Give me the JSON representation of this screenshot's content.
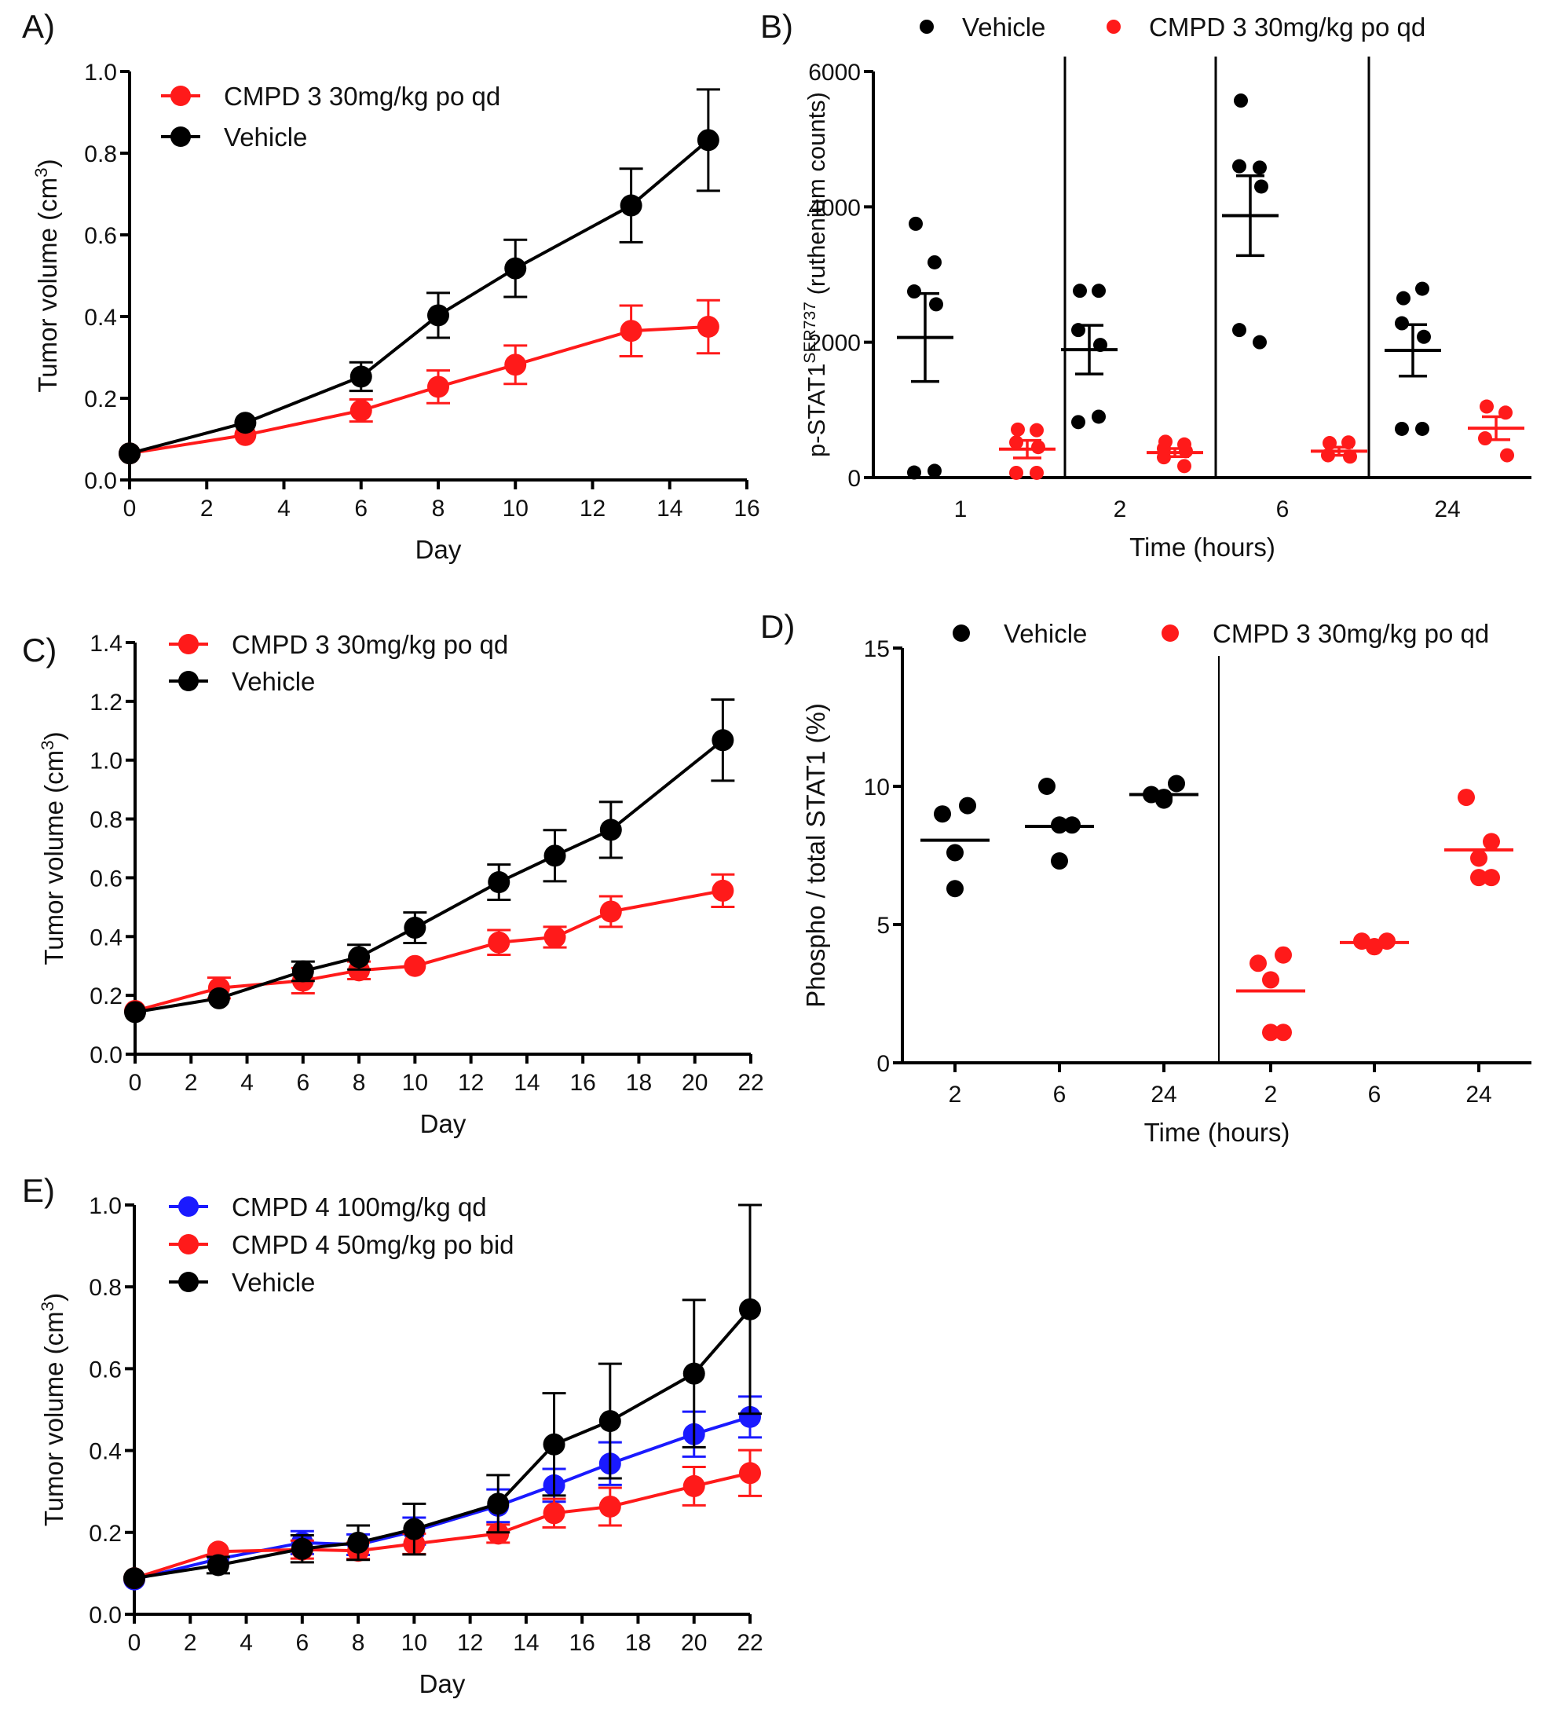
{
  "figure": {
    "panels": [
      "A)",
      "B)",
      "C)",
      "D)",
      "E)"
    ]
  },
  "colors": {
    "vehicle": "#000000",
    "cmpd_red": "#ff1a1a",
    "cmpd_blue": "#1a1aff"
  },
  "chart_data": [
    {
      "id": "A",
      "panel_label": "A)",
      "type": "line",
      "title": "",
      "xlabel": "Day",
      "ylabel": "Tumor volume (cm³)",
      "ylabel_main": "Tumor volume (cm",
      "ylabel_sup": "3",
      "ylabel_end": ")",
      "xlim": [
        0,
        16
      ],
      "ylim": [
        0,
        1.0
      ],
      "xticks": [
        0,
        2,
        4,
        6,
        8,
        10,
        12,
        14,
        16
      ],
      "yticks": [
        0.0,
        0.2,
        0.4,
        0.6,
        0.8,
        1.0
      ],
      "ytick_labels": [
        "0.0",
        "0.2",
        "0.4",
        "0.6",
        "0.8",
        "1.0"
      ],
      "legend_position": "top-left",
      "series": [
        {
          "name": "CMPD 3 30mg/kg po qd",
          "color": "#ff1a1a",
          "x": [
            0,
            3,
            6,
            8,
            10,
            13,
            15
          ],
          "y": [
            0.065,
            0.11,
            0.17,
            0.228,
            0.282,
            0.365,
            0.375
          ],
          "err": [
            0,
            0,
            0.027,
            0.04,
            0.047,
            0.062,
            0.065
          ]
        },
        {
          "name": "Vehicle",
          "color": "#000000",
          "x": [
            0,
            3,
            6,
            8,
            10,
            13,
            15
          ],
          "y": [
            0.065,
            0.14,
            0.253,
            0.403,
            0.518,
            0.672,
            0.832
          ],
          "err": [
            0,
            0,
            0.035,
            0.055,
            0.07,
            0.09,
            0.124
          ]
        }
      ]
    },
    {
      "id": "B",
      "panel_label": "B)",
      "type": "scatter",
      "title": "",
      "xlabel": "Time (hours)",
      "ylabel_main": "p-STAT1",
      "ylabel_sup": "SER737",
      "ylabel_end": " (ruthenium counts)",
      "ylim": [
        0,
        6000
      ],
      "yticks": [
        0,
        2000,
        4000,
        6000
      ],
      "ytick_labels": [
        "0",
        "2000",
        "4000",
        "6000"
      ],
      "categories": [
        "1",
        "2",
        "6",
        "24"
      ],
      "legend_position": "top",
      "series": [
        {
          "name": "Vehicle",
          "color": "#000000",
          "points": [
            [
              3750,
              3180,
              2750,
              2560,
              75,
              100
            ],
            [
              2760,
              2760,
              2180,
              1960,
              820,
              900
            ],
            [
              5570,
              4580,
              4600,
              4300,
              2180,
              2000
            ],
            [
              2650,
              2790,
              2280,
              2080,
              720,
              720
            ]
          ],
          "mean": [
            2070,
            1890,
            3870,
            1880
          ],
          "sem": [
            650,
            360,
            590,
            380
          ]
        },
        {
          "name": "CMPD 3 30mg/kg po qd",
          "color": "#ff1a1a",
          "points": [
            [
              710,
              700,
              520,
              450,
              70,
              70
            ],
            [
              530,
              490,
              430,
              390,
              300,
              170
            ],
            [
              510,
              520,
              330,
              310
            ],
            [
              1050,
              960,
              580,
              330
            ]
          ],
          "mean": [
            420,
            370,
            390,
            730
          ],
          "sem": [
            130,
            60,
            60,
            170
          ]
        }
      ]
    },
    {
      "id": "C",
      "panel_label": "C)",
      "type": "line",
      "title": "",
      "xlabel": "Day",
      "ylabel_main": "Tumor volume (cm",
      "ylabel_sup": "3",
      "ylabel_end": ")",
      "xlim": [
        0,
        22
      ],
      "ylim": [
        0,
        1.4
      ],
      "xticks": [
        0,
        2,
        4,
        6,
        8,
        10,
        12,
        14,
        16,
        18,
        20,
        22
      ],
      "yticks": [
        0.0,
        0.2,
        0.4,
        0.6,
        0.8,
        1.0,
        1.2,
        1.4
      ],
      "ytick_labels": [
        "0.0",
        "0.2",
        "0.4",
        "0.6",
        "0.8",
        "1.0",
        "1.2",
        "1.4"
      ],
      "legend_position": "top-left",
      "series": [
        {
          "name": "CMPD 3 30mg/kg po qd",
          "color": "#ff1a1a",
          "x": [
            0,
            3,
            6,
            8,
            10,
            13,
            15,
            17,
            21
          ],
          "y": [
            0.147,
            0.225,
            0.25,
            0.285,
            0.3,
            0.38,
            0.398,
            0.485,
            0.556
          ],
          "err": [
            0,
            0.035,
            0.043,
            0.03,
            0,
            0.042,
            0.035,
            0.052,
            0.055
          ]
        },
        {
          "name": "Vehicle",
          "color": "#000000",
          "x": [
            0,
            3,
            6,
            8,
            10,
            13,
            15,
            17,
            21
          ],
          "y": [
            0.143,
            0.19,
            0.282,
            0.33,
            0.43,
            0.585,
            0.675,
            0.763,
            1.068
          ],
          "err": [
            0,
            0,
            0.033,
            0.042,
            0.052,
            0.06,
            0.087,
            0.095,
            0.138
          ]
        }
      ]
    },
    {
      "id": "D",
      "panel_label": "D)",
      "type": "scatter",
      "title": "",
      "xlabel": "Time (hours)",
      "ylabel_main": "Phospho / total STAT1 (%)",
      "ylabel_sup": "",
      "ylabel_end": "",
      "ylim": [
        0,
        15
      ],
      "yticks": [
        0,
        5,
        10,
        15
      ],
      "ytick_labels": [
        "0",
        "5",
        "10",
        "15"
      ],
      "categories": [
        "2",
        "6",
        "24",
        "2",
        "6",
        "24"
      ],
      "legend_position": "top",
      "series": [
        {
          "name": "Vehicle",
          "color": "#000000",
          "groups": [
            0,
            1,
            2
          ],
          "points": [
            [
              9.0,
              9.3,
              7.6,
              6.3
            ],
            [
              10.0,
              8.6,
              8.6,
              7.3
            ],
            [
              9.7,
              10.1,
              9.5,
              9.6
            ]
          ],
          "mean": [
            8.05,
            8.55,
            9.7
          ]
        },
        {
          "name": "CMPD 3 30mg/kg po qd",
          "color": "#ff1a1a",
          "groups": [
            3,
            4,
            5
          ],
          "points": [
            [
              3.6,
              3.9,
              3.0,
              1.1,
              1.1
            ],
            [
              4.4,
              4.4,
              4.2,
              4.2
            ],
            [
              9.6,
              8.0,
              7.4,
              6.7,
              6.7
            ]
          ],
          "mean": [
            2.6,
            4.35,
            7.7
          ]
        }
      ]
    },
    {
      "id": "E",
      "panel_label": "E)",
      "type": "line",
      "title": "",
      "xlabel": "Day",
      "ylabel_main": "Tumor volume (cm",
      "ylabel_sup": "3",
      "ylabel_end": ")",
      "xlim": [
        0,
        22
      ],
      "ylim": [
        0,
        1.0
      ],
      "xticks": [
        0,
        2,
        4,
        6,
        8,
        10,
        12,
        14,
        16,
        18,
        20,
        22
      ],
      "yticks": [
        0.0,
        0.2,
        0.4,
        0.6,
        0.8,
        1.0
      ],
      "ytick_labels": [
        "0.0",
        "0.2",
        "0.4",
        "0.6",
        "0.8",
        "1.0"
      ],
      "legend_position": "top-left",
      "series": [
        {
          "name": "CMPD 4 100mg/kg qd",
          "color": "#1a1aff",
          "x": [
            0,
            3,
            6,
            8,
            10,
            13,
            15,
            17,
            20,
            22
          ],
          "y": [
            0.085,
            0.135,
            0.175,
            0.17,
            0.203,
            0.265,
            0.315,
            0.368,
            0.44,
            0.482
          ],
          "err": [
            0,
            0,
            0.028,
            0.025,
            0.033,
            0.04,
            0.04,
            0.052,
            0.055,
            0.05
          ]
        },
        {
          "name": "CMPD 4  50mg/kg po bid",
          "color": "#ff1a1a",
          "x": [
            0,
            3,
            6,
            8,
            10,
            13,
            15,
            17,
            20,
            22
          ],
          "y": [
            0.088,
            0.153,
            0.158,
            0.155,
            0.172,
            0.197,
            0.247,
            0.263,
            0.313,
            0.345
          ],
          "err": [
            0,
            0,
            0.022,
            0.02,
            0.025,
            0.022,
            0.035,
            0.046,
            0.047,
            0.056
          ]
        },
        {
          "name": "Vehicle",
          "color": "#000000",
          "x": [
            0,
            3,
            6,
            8,
            10,
            13,
            15,
            17,
            20,
            22
          ],
          "y": [
            0.088,
            0.12,
            0.16,
            0.175,
            0.208,
            0.27,
            0.415,
            0.472,
            0.588,
            0.745
          ],
          "err": [
            0,
            0.02,
            0.033,
            0.042,
            0.062,
            0.07,
            0.125,
            0.14,
            0.18,
            0.255
          ]
        }
      ]
    }
  ]
}
